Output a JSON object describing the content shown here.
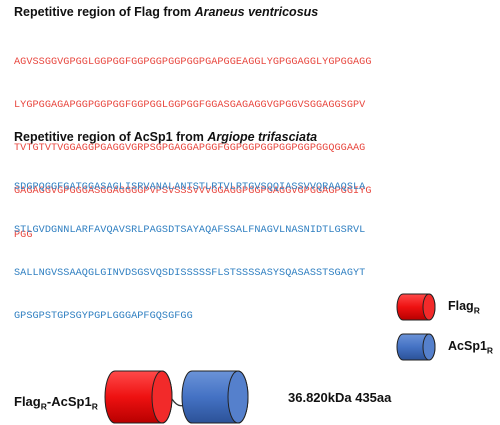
{
  "flag_heading": {
    "prefix": "Repetitive region of Flag from ",
    "species": "Araneus ventricosus"
  },
  "flag_sequence": [
    "AGVSSGGVGPGGLGGPGGFGGPGGPGGPGGPGAPGGEAGGLYGPGGAGGLYGPGGAGG",
    "LYGPGGAGAPGGPGGPGGFGGPGGLGGPGGFGGASGAGAGGVGPGGVSGGAGGSGPV",
    "TVTGTVTVGGAGGPGAGGVGRPSGPGAGGAPGGFGGPGGPGGPGGPGGPGGQGGAAG",
    "GAGAGGVGPGGGASGGAGGGGPVPSVSSSVVVGGAGGPGGPGAGGVGPGGAGPGGIYG",
    "PGG"
  ],
  "acsp_heading": {
    "prefix": "Repetitive region of AcSp1 from ",
    "species": "Argiope trifasciata"
  },
  "acsp_sequence": [
    "SDGPQGGFGATGGASAGLISRVANALANTSTLRTVLRTGVSQQIASSVVQRAAQSLA",
    "STLGVDGNNLARFAVQAVSRLPAGSDTSAYAQAFSSALFNAGVLNASNIDTLGSRVL",
    "SALLNGVSSAAQGLGINVDSGSVQSDISSSSSFLSTSSSSASYSQASASSTSGAGYT",
    "GPSGPSTGPSGYPGPLGGGAPFGQSGFGG"
  ],
  "legend": [
    {
      "base": "Flag",
      "sub": "R",
      "color": "#ee1111"
    },
    {
      "base": "AcSp1",
      "sub": "R",
      "color": "#4472c4"
    }
  ],
  "construct": {
    "part1": "Flag",
    "sub1": "R",
    "dash": "-",
    "part2": "AcSp1",
    "sub2": "R",
    "info": "36.820kDa 435aa",
    "color1": "#ee1111",
    "color2": "#4472c4"
  }
}
